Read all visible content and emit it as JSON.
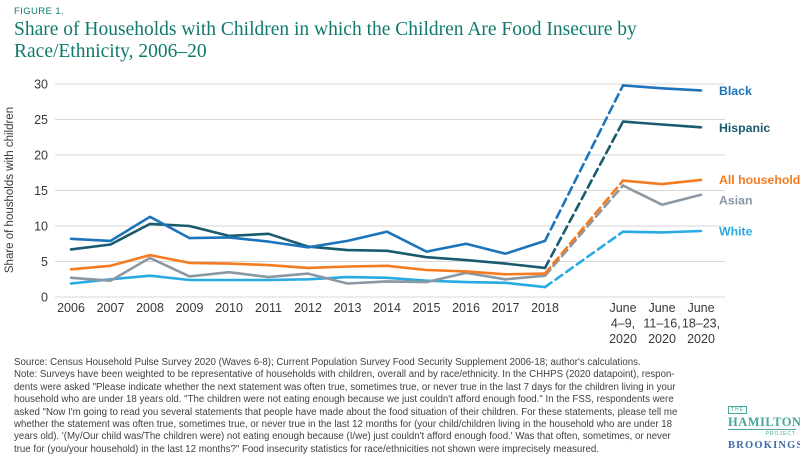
{
  "figure_label": "FIGURE 1.",
  "title_line1": "Share of Households with Children in which the Children Are Food Insecure by",
  "title_line2": "Race/Ethnicity, 2006–20",
  "colors": {
    "title_teal": "#0f7a6c",
    "grid": "#d7d7d7",
    "axis_text": "#383838",
    "black_series": "#1c75bc",
    "hispanic_series": "#1a5a6e",
    "all_households_series": "#f47b20",
    "asian_series": "#8b97a2",
    "white_series": "#29abe2"
  },
  "chart_data": {
    "type": "line",
    "title": "Share of Households with Children in which the Children Are Food Insecure by Race/Ethnicity, 2006–20",
    "xlabel": "",
    "ylabel": "Share of housholds with children",
    "ylim": [
      0,
      30
    ],
    "yticks": [
      0,
      5,
      10,
      15,
      20,
      25,
      30
    ],
    "grid": true,
    "legend_position": "right",
    "x_year_labels": [
      "2006",
      "2007",
      "2008",
      "2009",
      "2010",
      "2011",
      "2012",
      "2013",
      "2014",
      "2015",
      "2016",
      "2017",
      "2018"
    ],
    "x_wave_labels": [
      [
        "June",
        "4–9,",
        "2020"
      ],
      [
        "June",
        "11–16,",
        "2020"
      ],
      [
        "June",
        "18–23,",
        "2020"
      ]
    ],
    "dashed_segment_note": "dashed line connects 2018 to June 4–9, 2020",
    "series": [
      {
        "name": "Black",
        "color": "#1c75bc",
        "years": [
          8.2,
          7.9,
          11.3,
          8.3,
          8.4,
          7.8,
          7.0,
          7.9,
          9.2,
          6.4,
          7.5,
          6.1,
          7.9
        ],
        "waves": [
          29.8,
          29.4,
          29.1
        ]
      },
      {
        "name": "Hispanic",
        "color": "#1a5a6e",
        "years": [
          6.7,
          7.4,
          10.3,
          10.0,
          8.6,
          8.9,
          7.1,
          6.6,
          6.5,
          5.6,
          5.2,
          4.7,
          4.1
        ],
        "waves": [
          24.7,
          24.3,
          23.9
        ]
      },
      {
        "name": "All households",
        "color": "#f47b20",
        "years": [
          3.9,
          4.4,
          5.9,
          4.8,
          4.7,
          4.5,
          4.1,
          4.3,
          4.4,
          3.8,
          3.6,
          3.2,
          3.3
        ],
        "waves": [
          16.4,
          15.9,
          16.5
        ]
      },
      {
        "name": "Asian",
        "color": "#8b97a2",
        "years": [
          2.7,
          2.3,
          5.5,
          2.9,
          3.5,
          2.8,
          3.3,
          1.9,
          2.2,
          2.1,
          3.4,
          2.5,
          3.0
        ],
        "waves": [
          15.7,
          13.0,
          14.4
        ]
      },
      {
        "name": "White",
        "color": "#29abe2",
        "years": [
          1.9,
          2.5,
          3.0,
          2.4,
          2.4,
          2.4,
          2.5,
          2.8,
          2.7,
          2.3,
          2.1,
          2.0,
          1.4
        ],
        "waves": [
          9.2,
          9.1,
          9.3
        ]
      }
    ]
  },
  "footnote_lines": [
    "Source: Census Household Pulse Survey 2020 (Waves 6-8); Current Population Survey Food Security Supplement 2006-18; author's calculations.",
    "Note: Surveys have been weighted to be representative of households with children, overall and by race/ethnicity. In the CHHPS (2020 datapoint), respon-",
    "dents were asked \"Please indicate whether the next statement was often true, sometimes true, or never true in the last 7 days for the children living in your",
    "household who are under 18 years old. \"The children were not eating enough because we just couldn't afford enough food.\" In the FSS, respondents were",
    "asked \"Now I'm going to read you several statements that people have made about the food situation of their children. For these statements, please tell me",
    "whether the statement was often true, sometimes true, or never true in the last 12 months for (your child/children living in the household who are under 18",
    "years old). '(My/Our child was/The children were) not eating enough because (I/we) just couldn't afford enough food.' Was that often, sometimes, or never",
    "true for (you/your household) in the last 12 months?\" Food insecurity statistics for race/ethnicities not shown were imprecisely measured."
  ],
  "logo": {
    "the": "THE",
    "hamilton": "HAMILTON",
    "project": "PROJECT",
    "brookings": "BROOKINGS"
  }
}
